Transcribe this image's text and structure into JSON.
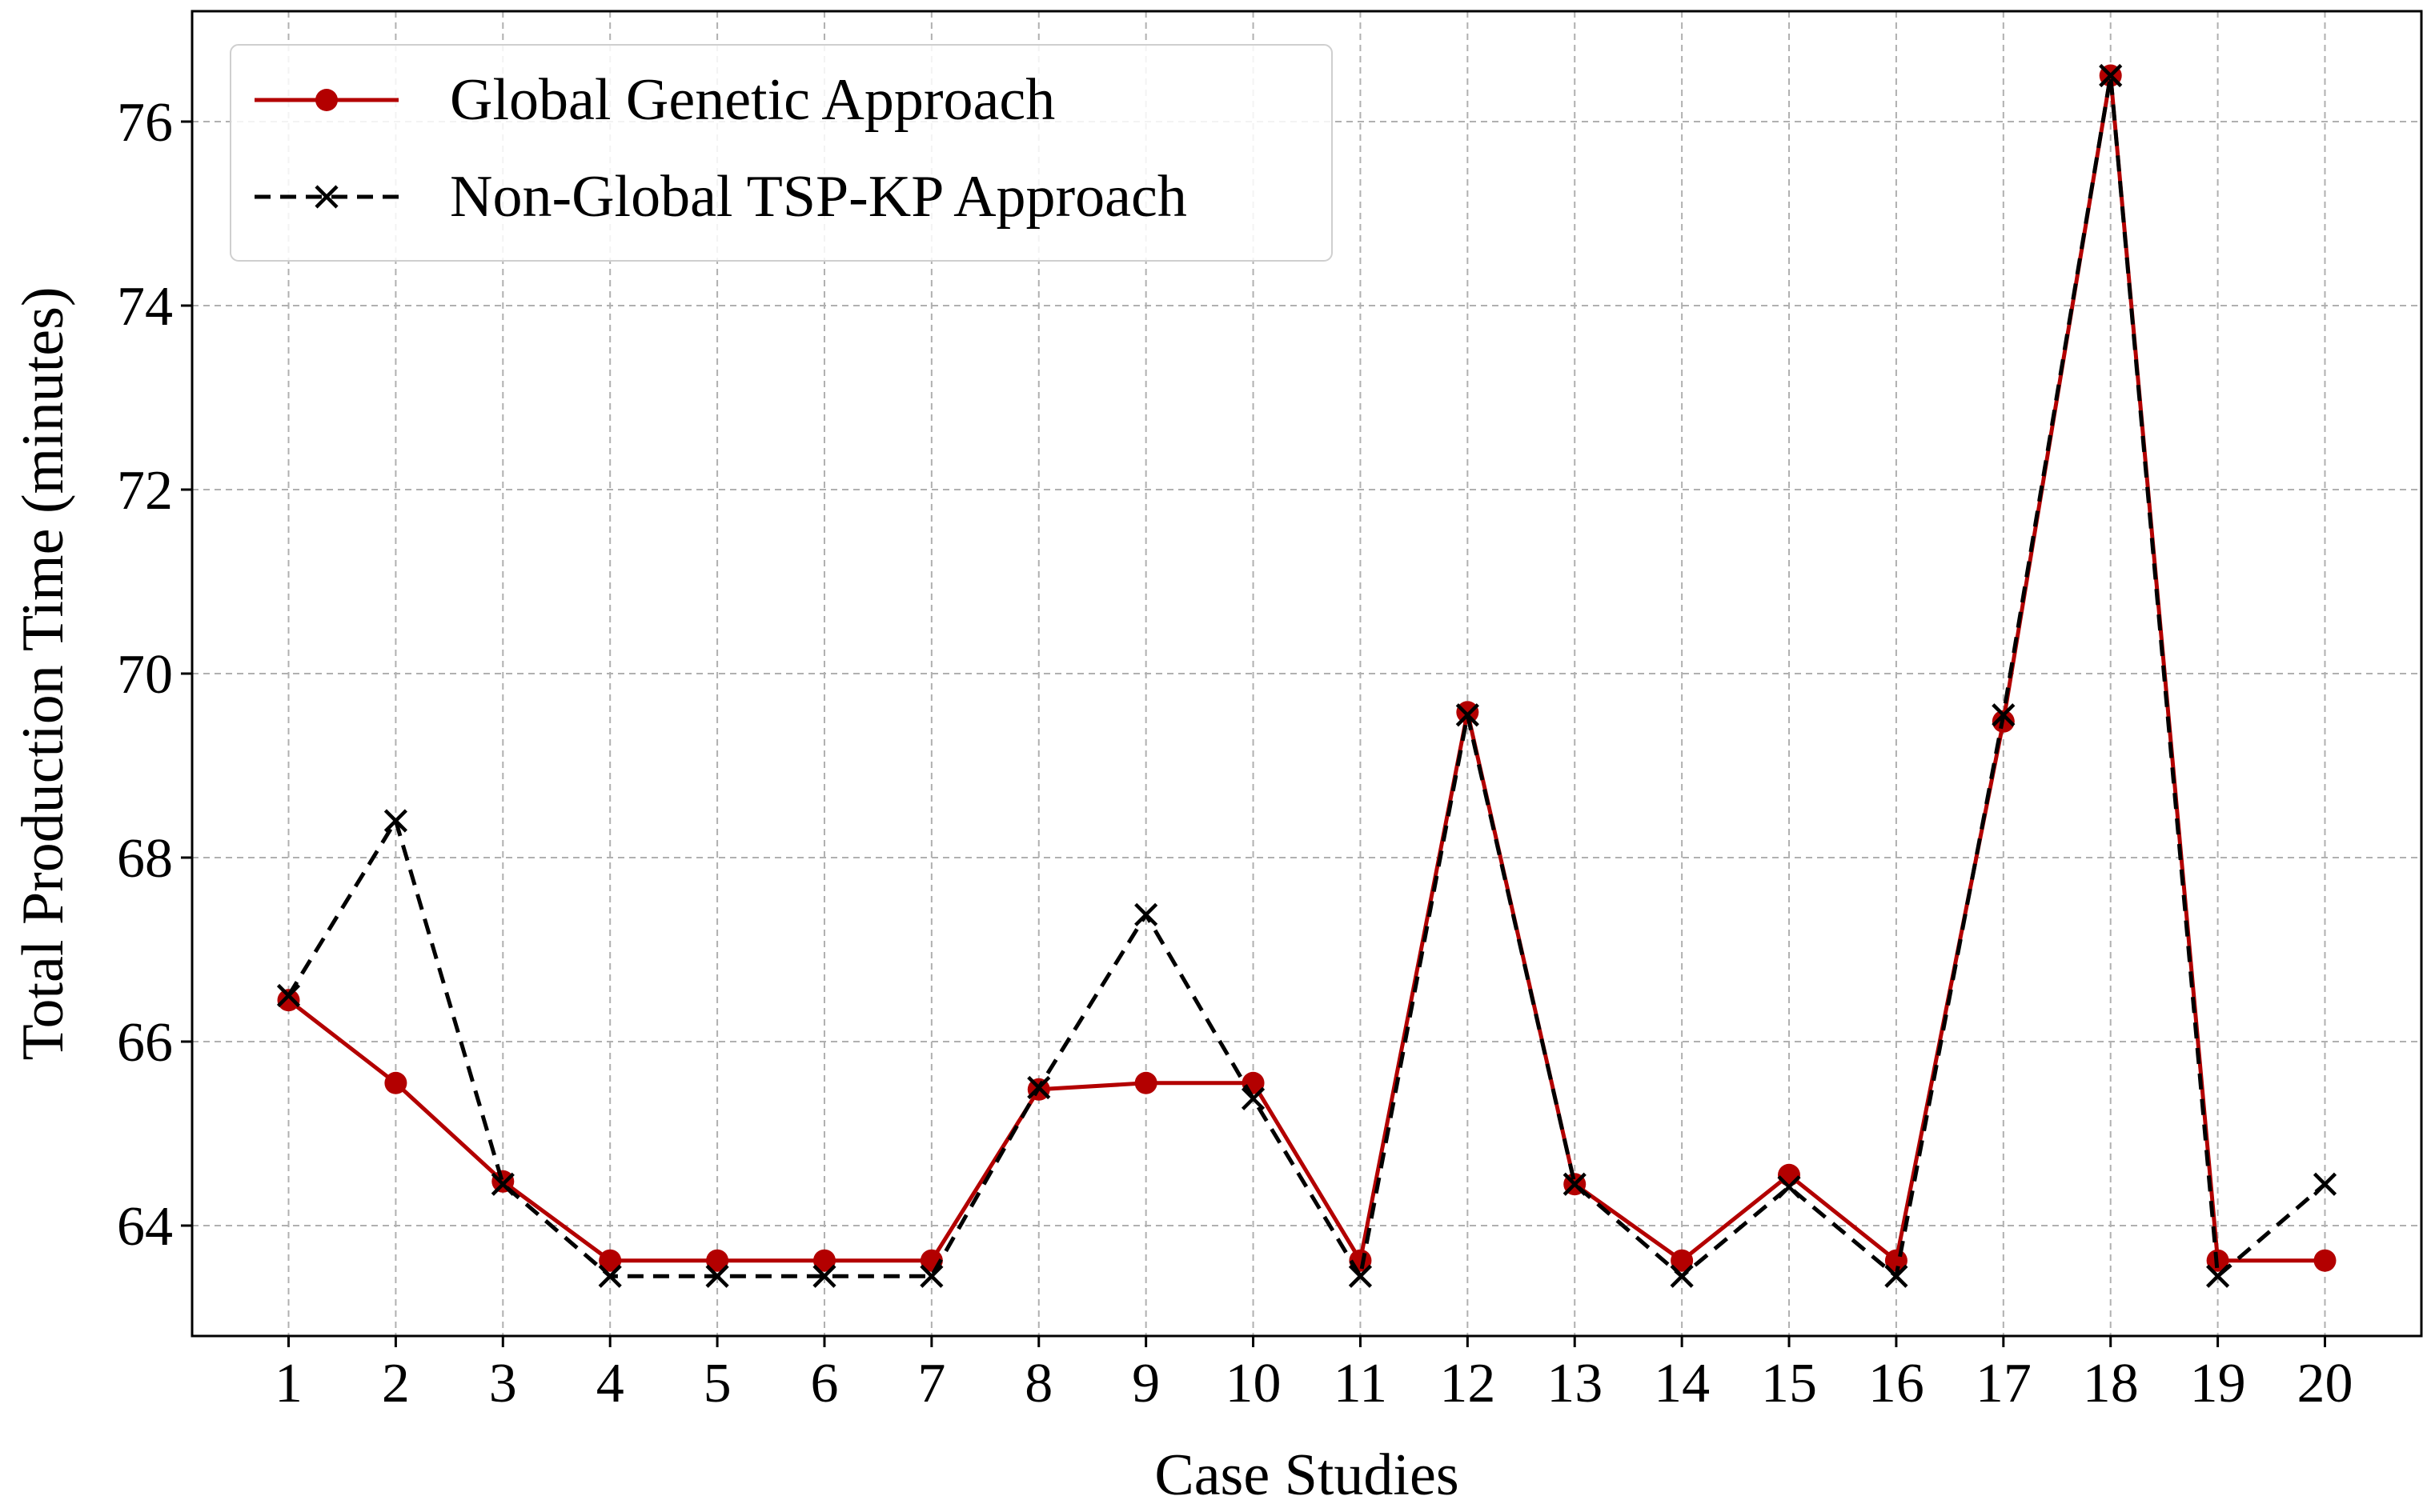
{
  "chart_data": {
    "type": "line",
    "title": "",
    "xlabel": "Case Studies",
    "ylabel": "Total Production Time (minutes)",
    "x": [
      1,
      2,
      3,
      4,
      5,
      6,
      7,
      8,
      9,
      10,
      11,
      12,
      13,
      14,
      15,
      16,
      17,
      18,
      19,
      20
    ],
    "xticks": [
      "1",
      "2",
      "3",
      "4",
      "5",
      "6",
      "7",
      "8",
      "9",
      "10",
      "11",
      "12",
      "13",
      "14",
      "15",
      "16",
      "17",
      "18",
      "19",
      "20"
    ],
    "yticks": [
      "64",
      "66",
      "68",
      "70",
      "72",
      "74",
      "76"
    ],
    "xlim": [
      0.1,
      20.9
    ],
    "ylim": [
      62.8,
      77.2
    ],
    "grid": true,
    "legend_position": "top-left",
    "series": [
      {
        "name": "Global Genetic Approach",
        "color": "#b30000",
        "line_style": "solid",
        "marker": "circle",
        "values": [
          66.45,
          65.55,
          64.48,
          63.62,
          63.62,
          63.62,
          63.62,
          65.48,
          65.55,
          65.55,
          63.62,
          69.58,
          64.45,
          63.62,
          64.55,
          63.62,
          69.48,
          76.5,
          63.62,
          63.62
        ]
      },
      {
        "name": "Non-Global TSP-KP Approach",
        "color": "#000000",
        "line_style": "dashed",
        "marker": "x",
        "values": [
          66.5,
          68.4,
          64.45,
          63.45,
          63.45,
          63.45,
          63.45,
          65.5,
          67.38,
          65.38,
          63.45,
          69.55,
          64.45,
          63.45,
          64.42,
          63.45,
          69.55,
          76.5,
          63.45,
          64.45
        ]
      }
    ]
  }
}
